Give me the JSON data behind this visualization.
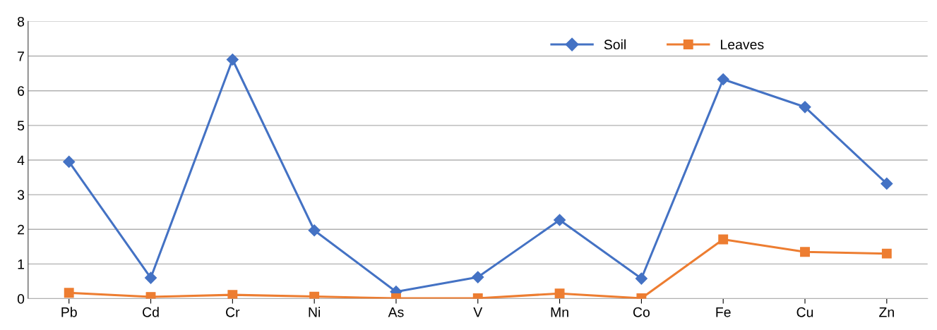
{
  "chart_data": {
    "type": "line",
    "categories": [
      "Pb",
      "Cd",
      "Cr",
      "Ni",
      "As",
      "V",
      "Mn",
      "Co",
      "Fe",
      "Cu",
      "Zn"
    ],
    "series": [
      {
        "name": "Soil",
        "color": "#4472c4",
        "marker": "diamond",
        "values": [
          3.95,
          0.6,
          6.9,
          1.97,
          0.2,
          0.62,
          2.27,
          0.58,
          6.33,
          5.53,
          3.32
        ]
      },
      {
        "name": "Leaves",
        "color": "#ed7d31",
        "marker": "square",
        "values": [
          0.17,
          0.05,
          0.11,
          0.06,
          0.01,
          0.01,
          0.15,
          0.01,
          1.71,
          1.35,
          1.3
        ]
      }
    ],
    "ylim": [
      0,
      8
    ],
    "yticks": [
      0,
      1,
      2,
      3,
      4,
      5,
      6,
      7,
      8
    ],
    "grid": "y",
    "legend": "top right",
    "line_style": "solid"
  }
}
